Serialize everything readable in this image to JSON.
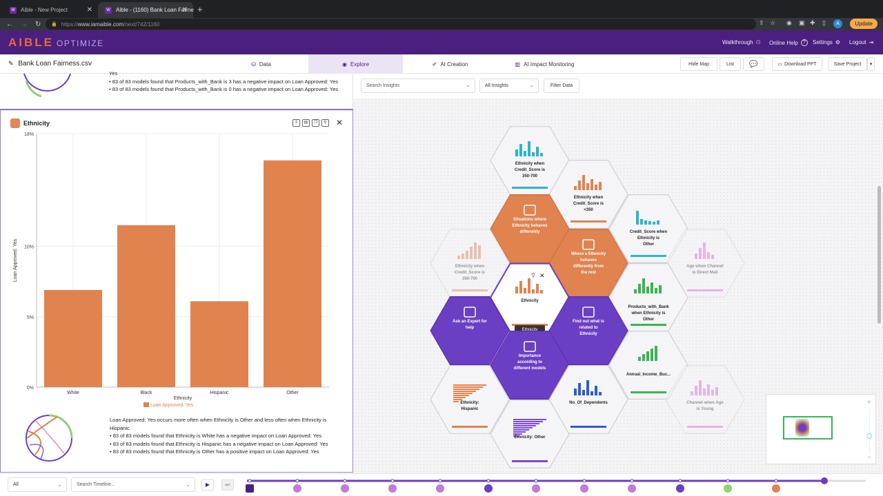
{
  "browser": {
    "tabs": [
      {
        "label": "Aible - New Project"
      },
      {
        "label": "Aible - (1160) Bank Loan Fairne"
      }
    ],
    "url_prefix": "https://",
    "url_host": "www.iamaible.com",
    "url_path": "/next/742/1160",
    "update_label": "Update",
    "profile_initial": "A"
  },
  "app": {
    "brand": "AIBLE",
    "brand_sub": "OPTIMIZE",
    "topnav": {
      "walkthrough": "Walkthrough",
      "online_help": "Online Help",
      "settings": "Settings",
      "logout": "Logout"
    }
  },
  "subbar": {
    "project_name": "Bank Loan Fairness.csv",
    "tabs": [
      "Data",
      "Explore",
      "AI Creation",
      "AI Impact Monitoring"
    ],
    "active_tab": "Explore",
    "hide_map": "Hide Map",
    "list": "List",
    "download_ppt": "Download PPT",
    "save_project": "Save Project"
  },
  "previous_insight": {
    "lines": [
      "Yes",
      "• 83 of 83 models found that Products_with_Bank is 3 has a negative impact on Loan Approved: Yes",
      "• 83 of 83 models found that Products_with_Bank is 0 has a negative impact on Loan Approved: Yes"
    ]
  },
  "card": {
    "title": "Ethnicity",
    "description_lines": [
      "Loan Approved: Yes occurs more often when Ethnicity is Other and less often when Ethnicity is Hispanic.",
      "• 83 of 83 models found that Ethnicity is White has a negative impact on Loan Approved: Yes",
      "• 83 of 83 models found that Ethnicity is Hispanic has a negative impact on Loan Approved: Yes",
      "• 83 of 83 models found that Ethnicity is Other has a positive impact on Loan Approved: Yes"
    ]
  },
  "chart_data": {
    "type": "bar",
    "categories": [
      "White",
      "Black",
      "Hispanic",
      "Other"
    ],
    "series": [
      {
        "name": "Loan Approved: Yes",
        "values": [
          6.9,
          11.5,
          6.1,
          16.1
        ]
      }
    ],
    "xlabel": "Ethnicity",
    "ylabel": "Loan Approved: Yes",
    "ylim": [
      0,
      18
    ],
    "yticks": [
      "0%",
      "5%",
      "10%",
      "18%"
    ],
    "ytick_values": [
      0,
      5,
      10,
      18
    ],
    "bar_color": "#e0834f",
    "grid": true,
    "legend": "bottom"
  },
  "map": {
    "search_placeholder": "Search Insights",
    "insight_filter": "All Insights",
    "filter_data": "Filter Data",
    "tooltip": "Ethnicity",
    "hexes": [
      {
        "label": "Ethnicity when Credit_Score is 350-700",
        "kind": "chart",
        "accent": "#2bb5c9"
      },
      {
        "label": "Ethnicity when Credit_Score is <350",
        "kind": "chart",
        "accent": "#e0834f"
      },
      {
        "label": "Credit_Score when Ethnicity is Other",
        "kind": "chart",
        "accent": "#2bb5c9"
      },
      {
        "label": "Age when Channel is Direct Mail",
        "kind": "faded",
        "accent": "#d36bd6"
      },
      {
        "label": "Situations where Ethnicity behaves differently",
        "kind": "orange"
      },
      {
        "label": "Where a Ethnicity behaves differently from the rest",
        "kind": "orange"
      },
      {
        "label": "Ethnicity when Credit_Score is 350-700",
        "kind": "faded",
        "accent": "#e0834f"
      },
      {
        "label": "Ethnicity",
        "kind": "selected",
        "accent": "#e0834f"
      },
      {
        "label": "Products_with_Bank when Ethnicity is Other",
        "kind": "chart",
        "accent": "#3bb552"
      },
      {
        "label": "Ask an Expert for help",
        "kind": "purple"
      },
      {
        "label": "Find out what is related to Ethnicity",
        "kind": "purple"
      },
      {
        "label": "Importance according to different models",
        "kind": "purple"
      },
      {
        "label": "Annual_Income_Buc...",
        "kind": "chart",
        "accent": "#3bb552"
      },
      {
        "label": "Ethnicity: Hispanic",
        "kind": "chart",
        "accent": "#e0834f"
      },
      {
        "label": "No_Of_Dependents",
        "kind": "chart",
        "accent": "#2f5bd1"
      },
      {
        "label": "Channel when Age is Young",
        "kind": "faded",
        "accent": "#d36bd6"
      },
      {
        "label": "Ethnicity: Other",
        "kind": "chart",
        "accent": "#7a4bd1"
      }
    ]
  },
  "bottombar": {
    "filter_value": "All",
    "timeline_placeholder": "Search Timeline..."
  },
  "colors": {
    "purple_dark": "#4a1f80",
    "purple": "#6b3fc4",
    "orange": "#e0834f",
    "teal": "#2bb5c9",
    "green": "#3bb552",
    "blue": "#2f5bd1"
  }
}
